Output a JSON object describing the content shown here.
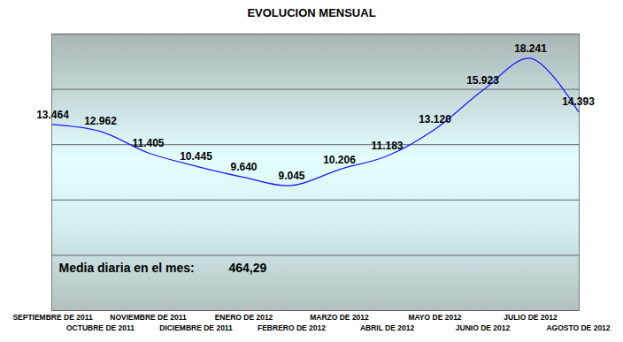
{
  "chart_data": {
    "type": "line",
    "title": "EVOLUCION MENSUAL",
    "categories": [
      "SEPTIEMBRE DE 2011",
      "OCTUBRE DE 2011",
      "NOVIEMBRE DE 2011",
      "DICIEMBRE DE 2011",
      "ENERO DE 2012",
      "FEBRERO DE 2012",
      "MARZO DE 2012",
      "ABRIL DE 2012",
      "MAYO DE 2012",
      "JUNIO DE 2012",
      "JULIO DE 2012",
      "AGOSTO DE 2012"
    ],
    "values": [
      13464,
      12962,
      11405,
      10445,
      9640,
      9045,
      10206,
      11183,
      13120,
      15923,
      18241,
      14393
    ],
    "value_labels": [
      "13.464",
      "12.962",
      "11.405",
      "10.445",
      "9.640",
      "9.045",
      "10.206",
      "11.183",
      "13.120",
      "15.923",
      "18.241",
      "14.393"
    ],
    "color": "#1a1aff",
    "ylim": [
      0,
      20000
    ],
    "yticks": [
      0,
      4000,
      8000,
      12000,
      16000,
      20000
    ],
    "grid": true,
    "data_labels": true,
    "tick_labels": "x",
    "annotations": [
      {
        "text": "Media diaria en el mes:"
      },
      {
        "text": "464,29"
      }
    ]
  }
}
